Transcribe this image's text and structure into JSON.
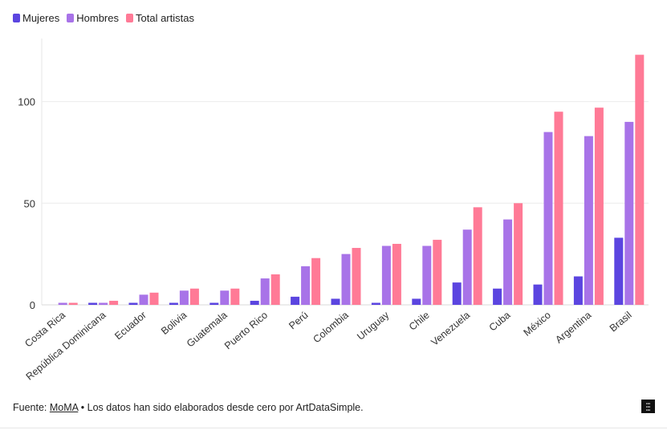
{
  "chart_data": {
    "type": "bar",
    "categories": [
      "Costa Rica",
      "República Dominicana",
      "Ecuador",
      "Bolivia",
      "Guatemala",
      "Puerto Rico",
      "Perú",
      "Colombia",
      "Uruguay",
      "Chile",
      "Venezuela",
      "Cuba",
      "México",
      "Argentina",
      "Brasil"
    ],
    "series": [
      {
        "name": "Mujeres",
        "color": "#5b45e0",
        "values": [
          0,
          1,
          1,
          1,
          1,
          2,
          4,
          3,
          1,
          3,
          11,
          8,
          10,
          14,
          33
        ]
      },
      {
        "name": "Hombres",
        "color": "#a873e8",
        "values": [
          1,
          1,
          5,
          7,
          7,
          13,
          19,
          25,
          29,
          29,
          37,
          42,
          85,
          83,
          90
        ]
      },
      {
        "name": "Total artistas",
        "color": "#ff7a96",
        "values": [
          1,
          2,
          6,
          8,
          8,
          15,
          23,
          28,
          30,
          32,
          48,
          50,
          95,
          97,
          123
        ]
      }
    ],
    "yticks": [
      0,
      50,
      100
    ],
    "ylim": [
      0,
      131
    ],
    "grid": true,
    "legend": "top-left"
  },
  "footer": {
    "prefix": "Fuente: ",
    "source_link": "MoMA",
    "suffix": " • Los datos han sido elaborados desde cero por ArtDataSimple."
  }
}
